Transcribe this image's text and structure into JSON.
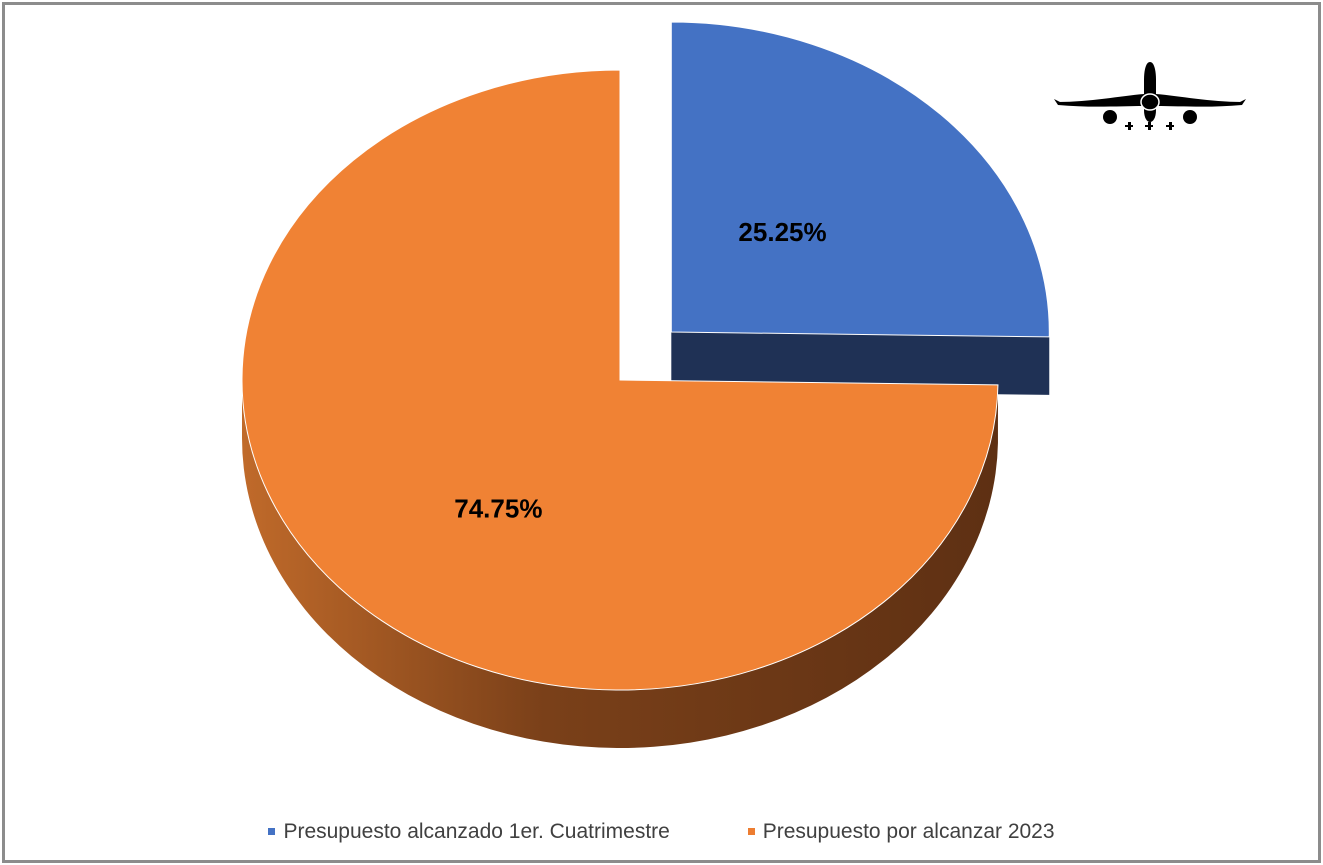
{
  "chart_data": {
    "type": "pie",
    "style": "3d-exploded",
    "slices": [
      {
        "name": "Presupuesto alcanzado 1er. Cuatrimestre",
        "value": 25.25,
        "label": "25.25%",
        "color": "#4472C4",
        "side_color": "#1F3155",
        "exploded": true
      },
      {
        "name": "Presupuesto por alcanzar 2023",
        "value": 74.75,
        "label": "74.75%",
        "color": "#F08234",
        "side_color": "#6B3A17",
        "exploded": false
      }
    ],
    "legend_position": "bottom",
    "icon": "airplane-icon"
  },
  "legend": {
    "items": [
      {
        "label": "Presupuesto alcanzado 1er. Cuatrimestre",
        "color": "#4472C4"
      },
      {
        "label": "Presupuesto por alcanzar 2023",
        "color": "#ED7D31"
      }
    ]
  }
}
